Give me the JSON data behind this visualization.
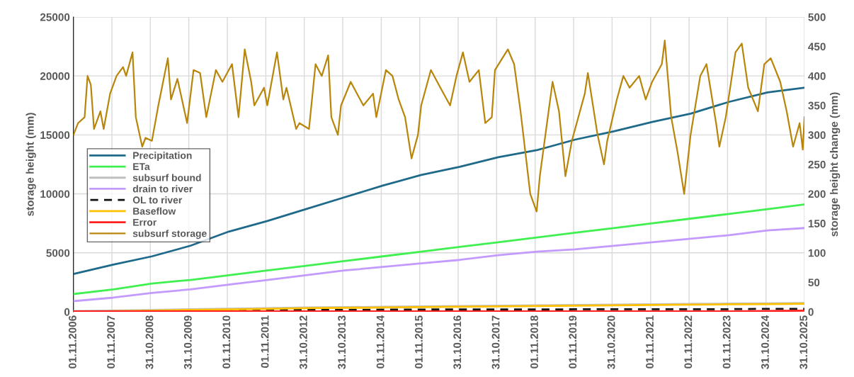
{
  "chart_data": {
    "type": "line",
    "xlabel": null,
    "ylabel": "storage height (mm)",
    "y2label": "storage height change (mm)",
    "x": [
      "2006-11-01",
      "2007-11",
      "2008-11",
      "2009-11",
      "2010-11",
      "2011-11",
      "2012-11",
      "2013-11",
      "2014-11",
      "2015-11",
      "2016-11",
      "2017-11",
      "2018-11",
      "2019-11",
      "2020-11",
      "2021-11",
      "2022-11",
      "2023-11",
      "2024-11",
      "2025-10-31"
    ],
    "xlim": [
      "2006-11-01",
      "2025-10-31"
    ],
    "xticks": [
      {
        "value": "2006-11-01",
        "label": "01.11.2006"
      },
      {
        "value": "2007-11-01",
        "label": "01.11.2007"
      },
      {
        "value": "2008-10-31",
        "label": "31.10.2008"
      },
      {
        "value": "2009-10-31",
        "label": "31.10.2009"
      },
      {
        "value": "2010-11-01",
        "label": "01.11.2010"
      },
      {
        "value": "2011-11-01",
        "label": "01.11.2011"
      },
      {
        "value": "2012-10-31",
        "label": "31.10.2012"
      },
      {
        "value": "2013-10-31",
        "label": "31.10.2013"
      },
      {
        "value": "2014-11-01",
        "label": "01.11.2014"
      },
      {
        "value": "2015-11-01",
        "label": "01.11.2015"
      },
      {
        "value": "2016-10-31",
        "label": "31.10.2016"
      },
      {
        "value": "2017-10-31",
        "label": "31.10.2017"
      },
      {
        "value": "2018-11-01",
        "label": "01.11.2018"
      },
      {
        "value": "2019-11-01",
        "label": "01.11.2019"
      },
      {
        "value": "2020-10-31",
        "label": "31.10.2020"
      },
      {
        "value": "2021-11-01",
        "label": "01.11.2021"
      },
      {
        "value": "2022-11-01",
        "label": "01.11.2022"
      },
      {
        "value": "2023-11-01",
        "label": "01.11.2023"
      },
      {
        "value": "2024-10-31",
        "label": "31.10.2024"
      },
      {
        "value": "2025-10-31",
        "label": "31.10.2025"
      }
    ],
    "ylim": [
      0,
      25000
    ],
    "yticks": [
      0,
      5000,
      10000,
      15000,
      20000,
      25000
    ],
    "y2lim": [
      0,
      500
    ],
    "y2ticks": [
      0,
      50,
      100,
      150,
      200,
      250,
      300,
      350,
      400,
      450,
      500
    ],
    "grid": true,
    "legend": "center left",
    "series": [
      {
        "name": "Precipitation",
        "color": "#1f6a8a",
        "values": [
          3200,
          4000,
          4700,
          5600,
          6800,
          7700,
          8700,
          9700,
          10700,
          11600,
          12300,
          13100,
          13700,
          14600,
          15300,
          16100,
          16800,
          17800,
          18600,
          19000
        ]
      },
      {
        "name": "ETa",
        "color": "#3ff050",
        "values": [
          1500,
          1900,
          2400,
          2700,
          3100,
          3500,
          3900,
          4300,
          4700,
          5100,
          5500,
          5900,
          6300,
          6700,
          7100,
          7500,
          7900,
          8300,
          8700,
          9100
        ]
      },
      {
        "name": "subsurf bound",
        "color": "#bfbfbf",
        "values": [
          60,
          110,
          160,
          210,
          260,
          310,
          360,
          390,
          420,
          460,
          490,
          520,
          550,
          580,
          610,
          640,
          670,
          690,
          710,
          740
        ]
      },
      {
        "name": "drain to river",
        "color": "#c39bff",
        "values": [
          900,
          1200,
          1600,
          1900,
          2300,
          2700,
          3100,
          3500,
          3800,
          4100,
          4400,
          4800,
          5100,
          5300,
          5600,
          5900,
          6200,
          6500,
          6900,
          7100
        ]
      },
      {
        "name": "OL to river",
        "color": "#111111",
        "line_style": "dashed",
        "values": [
          0,
          20,
          50,
          80,
          120,
          150,
          160,
          170,
          180,
          190,
          200,
          200,
          200,
          210,
          210,
          210,
          220,
          220,
          250,
          250
        ]
      },
      {
        "name": "Baseflow",
        "color": "#ffc000",
        "values": [
          0,
          50,
          100,
          150,
          200,
          250,
          300,
          330,
          360,
          400,
          430,
          460,
          490,
          520,
          550,
          580,
          610,
          630,
          650,
          680
        ]
      },
      {
        "name": "Error",
        "color": "#ff2020",
        "values": [
          30,
          30,
          30,
          30,
          30,
          30,
          30,
          30,
          30,
          30,
          30,
          30,
          30,
          30,
          30,
          30,
          30,
          40,
          60,
          100
        ]
      },
      {
        "name": "subsurf storage",
        "color": "#b8860b",
        "axis": "y2",
        "x": [
          "2006-11-01",
          "2006-12",
          "2007-02",
          "2007-03",
          "2007-04",
          "2007-05",
          "2007-07",
          "2007-08",
          "2007-10",
          "2007-12",
          "2008-02",
          "2008-03",
          "2008-05",
          "2008-06",
          "2008-08",
          "2008-09",
          "2008-11",
          "2009-01",
          "2009-04",
          "2009-05",
          "2009-07",
          "2009-10",
          "2009-12",
          "2010-02",
          "2010-04",
          "2010-07",
          "2010-09",
          "2010-12",
          "2011-02",
          "2011-04",
          "2011-06",
          "2011-07",
          "2011-10",
          "2011-11",
          "2012-02",
          "2012-04",
          "2012-05",
          "2012-08",
          "2012-09",
          "2012-12",
          "2013-02",
          "2013-04",
          "2013-06",
          "2013-07",
          "2013-09",
          "2013-10",
          "2014-01",
          "2014-03",
          "2014-05",
          "2014-08",
          "2014-09",
          "2014-12",
          "2015-02",
          "2015-04",
          "2015-06",
          "2015-08",
          "2015-10",
          "2015-11",
          "2016-02",
          "2016-05",
          "2016-08",
          "2016-10",
          "2016-12",
          "2017-02",
          "2017-05",
          "2017-07",
          "2017-09",
          "2017-10",
          "2018-02",
          "2018-04",
          "2018-06",
          "2018-09",
          "2018-11",
          "2018-12",
          "2019-04",
          "2019-06",
          "2019-08",
          "2019-10",
          "2020-02",
          "2020-03",
          "2020-06",
          "2020-08",
          "2020-09",
          "2020-12",
          "2021-02",
          "2021-04",
          "2021-07",
          "2021-09",
          "2021-11",
          "2022-02",
          "2022-03",
          "2022-05",
          "2022-07",
          "2022-09",
          "2022-11",
          "2023-02",
          "2023-04",
          "2023-07",
          "2023-08",
          "2023-10",
          "2024-01",
          "2024-03",
          "2024-05",
          "2024-08",
          "2024-10",
          "2024-12",
          "2025-03",
          "2025-05",
          "2025-07",
          "2025-09",
          "2025-10-15",
          "2025-10-31"
        ],
        "values": [
          300,
          320,
          330,
          400,
          385,
          310,
          340,
          310,
          370,
          400,
          415,
          400,
          440,
          330,
          280,
          295,
          290,
          350,
          430,
          360,
          395,
          320,
          410,
          405,
          330,
          410,
          390,
          420,
          330,
          445,
          390,
          350,
          380,
          350,
          440,
          360,
          380,
          310,
          320,
          310,
          420,
          400,
          435,
          330,
          300,
          350,
          390,
          370,
          350,
          370,
          330,
          410,
          400,
          360,
          330,
          260,
          300,
          350,
          410,
          380,
          350,
          400,
          440,
          390,
          410,
          320,
          330,
          410,
          445,
          420,
          340,
          200,
          170,
          230,
          390,
          340,
          230,
          290,
          370,
          405,
          300,
          250,
          290,
          360,
          400,
          380,
          400,
          360,
          390,
          420,
          460,
          330,
          270,
          200,
          300,
          400,
          420,
          320,
          280,
          330,
          440,
          455,
          380,
          340,
          420,
          430,
          390,
          340,
          280,
          320,
          275,
          330
        ]
      }
    ]
  }
}
